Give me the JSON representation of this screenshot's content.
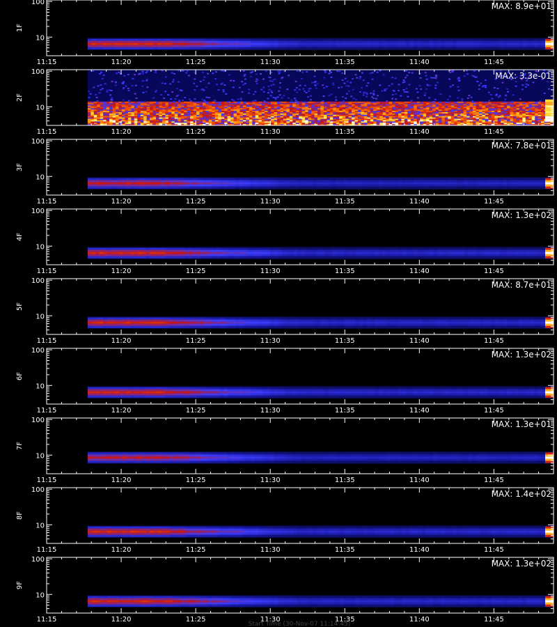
{
  "chart_data": {
    "type": "heatmap",
    "time_range": [
      "11:15",
      "11:49"
    ],
    "x_tick_labels": [
      "11:15",
      "11:20",
      "11:25",
      "11:30",
      "11:35",
      "11:40",
      "11:45"
    ],
    "y_tick_labels": [
      "100",
      "10"
    ],
    "ylim": [
      3,
      110
    ],
    "y_scale": "log",
    "colormap": "black-blue-red-yellow-white",
    "data_start": "11:17:45",
    "footer": "Start Time (30-Nov-07 11:14:45)",
    "panels": [
      {
        "label": "1F",
        "max_text": "MAX: 8.9e+01",
        "band_center": 6.4,
        "band_intensity": 0.85
      },
      {
        "label": "2F",
        "max_text": "MAX: 3.3e-01",
        "band_center": 7.0,
        "band_intensity": 1.0,
        "noisy": true
      },
      {
        "label": "3F",
        "max_text": "MAX: 7.8e+01",
        "band_center": 6.4,
        "band_intensity": 0.8
      },
      {
        "label": "4F",
        "max_text": "MAX: 1.3e+02",
        "band_center": 6.4,
        "band_intensity": 0.85
      },
      {
        "label": "5F",
        "max_text": "MAX: 8.7e+01",
        "band_center": 6.4,
        "band_intensity": 0.85
      },
      {
        "label": "6F",
        "max_text": "MAX: 1.3e+02",
        "band_center": 6.4,
        "band_intensity": 0.85
      },
      {
        "label": "7F",
        "max_text": "MAX: 1.3e+01",
        "band_center": 8.5,
        "band_intensity": 0.8
      },
      {
        "label": "8F",
        "max_text": "MAX: 1.4e+02",
        "band_center": 6.4,
        "band_intensity": 0.85
      },
      {
        "label": "9F",
        "max_text": "MAX: 1.3e+02",
        "band_center": 6.4,
        "band_intensity": 0.85
      }
    ]
  }
}
